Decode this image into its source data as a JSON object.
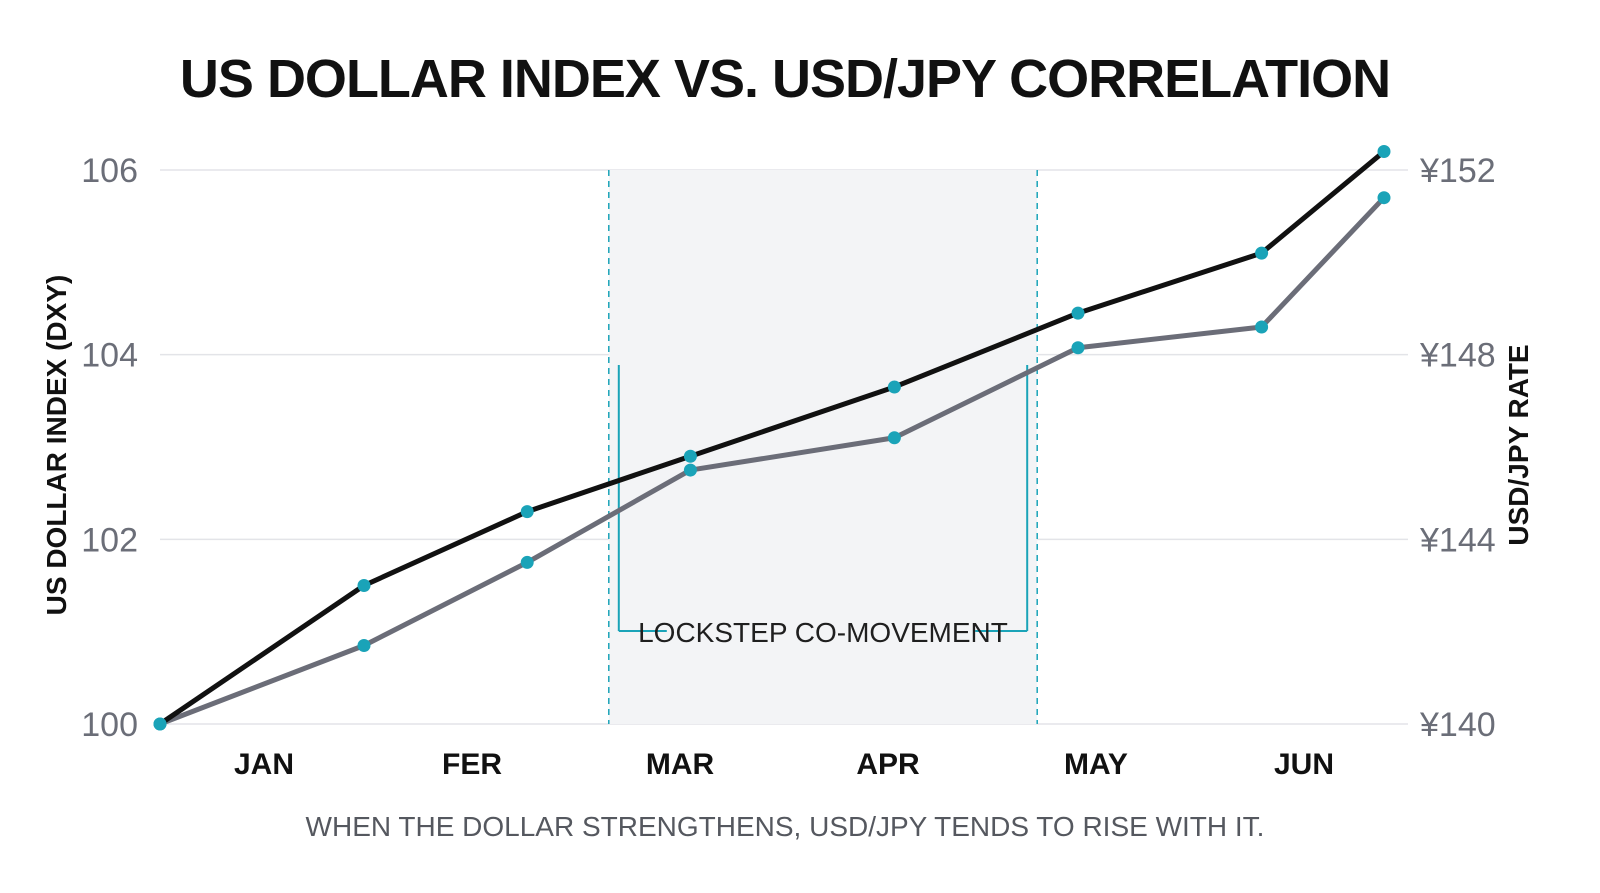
{
  "chart_data": {
    "type": "line",
    "title": "US DOLLAR INDEX VS. USD/JPY CORRELATION",
    "caption": "WHEN THE DOLLAR STRENGTHENS, USD/JPY TENDS TO RISE WITH IT.",
    "ylabel": "US DOLLAR INDEX (DXY)",
    "y2label": "USD/JPY RATE",
    "months": [
      "JAN",
      "FER",
      "MAR",
      "APR",
      "MAY",
      "JUN"
    ],
    "y_ticks": [
      "100",
      "102",
      "104",
      "106"
    ],
    "y2_ticks": [
      "¥140",
      "¥144",
      "¥148",
      "¥152"
    ],
    "ylim": [
      100,
      106
    ],
    "y2lim": [
      140,
      152
    ],
    "xlim": [
      0,
      6
    ],
    "grid": true,
    "series": [
      {
        "axis": "left",
        "color": "#111111",
        "x": [
          0,
          1,
          1.8,
          2.6,
          3.6,
          4.5,
          5.4,
          6.0
        ],
        "values": [
          100.0,
          101.5,
          102.3,
          102.9,
          103.65,
          104.45,
          105.1,
          106.2
        ]
      },
      {
        "axis": "right",
        "color": "#6b6d78",
        "x": [
          0,
          1,
          1.8,
          2.6,
          3.6,
          4.5,
          5.4,
          6.0
        ],
        "values": [
          140.0,
          141.7,
          143.5,
          145.5,
          146.2,
          148.15,
          148.6,
          151.4
        ]
      }
    ],
    "highlight": {
      "label": "LOCKSTEP CO-MOVEMENT",
      "x_range": [
        2.2,
        4.3
      ],
      "color": "#1aa3b8"
    },
    "marker_color": "#1aa3b8"
  }
}
